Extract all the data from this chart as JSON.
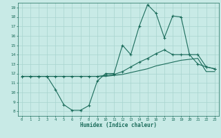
{
  "xlabel": "Humidex (Indice chaleur)",
  "background_color": "#c8eae6",
  "grid_color": "#a8d4ce",
  "line_color": "#1a6b5a",
  "xlim": [
    -0.5,
    23.5
  ],
  "ylim": [
    7.5,
    19.5
  ],
  "xticks": [
    0,
    1,
    2,
    3,
    4,
    5,
    6,
    7,
    8,
    9,
    10,
    11,
    12,
    13,
    14,
    15,
    16,
    17,
    18,
    19,
    20,
    21,
    22,
    23
  ],
  "yticks": [
    8,
    9,
    10,
    11,
    12,
    13,
    14,
    15,
    16,
    17,
    18,
    19
  ],
  "curve_top_x": [
    0,
    1,
    2,
    3,
    4,
    5,
    6,
    7,
    8,
    9,
    10,
    11,
    12,
    13,
    14,
    15,
    16,
    17,
    18,
    19,
    20,
    21,
    22,
    23
  ],
  "curve_top_y": [
    11.7,
    11.7,
    11.7,
    11.7,
    10.3,
    8.7,
    8.1,
    8.1,
    8.6,
    11.2,
    12.0,
    12.0,
    15.0,
    14.0,
    17.0,
    19.3,
    18.4,
    15.8,
    18.1,
    18.0,
    14.0,
    14.0,
    12.7,
    12.5
  ],
  "curve_mid_x": [
    0,
    1,
    2,
    3,
    4,
    5,
    6,
    7,
    8,
    9,
    10,
    11,
    12,
    13,
    14,
    15,
    16,
    17,
    18,
    19,
    20,
    21,
    22,
    23
  ],
  "curve_mid_y": [
    11.7,
    11.7,
    11.7,
    11.7,
    11.7,
    11.7,
    11.7,
    11.7,
    11.7,
    11.7,
    11.8,
    11.9,
    12.2,
    12.7,
    13.2,
    13.6,
    14.1,
    14.5,
    14.0,
    14.0,
    14.0,
    13.0,
    12.7,
    12.5
  ],
  "curve_bot_x": [
    0,
    1,
    2,
    3,
    4,
    5,
    6,
    7,
    8,
    9,
    10,
    11,
    12,
    13,
    14,
    15,
    16,
    17,
    18,
    19,
    20,
    21,
    22,
    23
  ],
  "curve_bot_y": [
    11.7,
    11.7,
    11.7,
    11.7,
    11.7,
    11.7,
    11.7,
    11.7,
    11.7,
    11.7,
    11.7,
    11.8,
    11.9,
    12.1,
    12.3,
    12.5,
    12.8,
    13.0,
    13.2,
    13.4,
    13.5,
    13.6,
    12.2,
    12.2
  ]
}
